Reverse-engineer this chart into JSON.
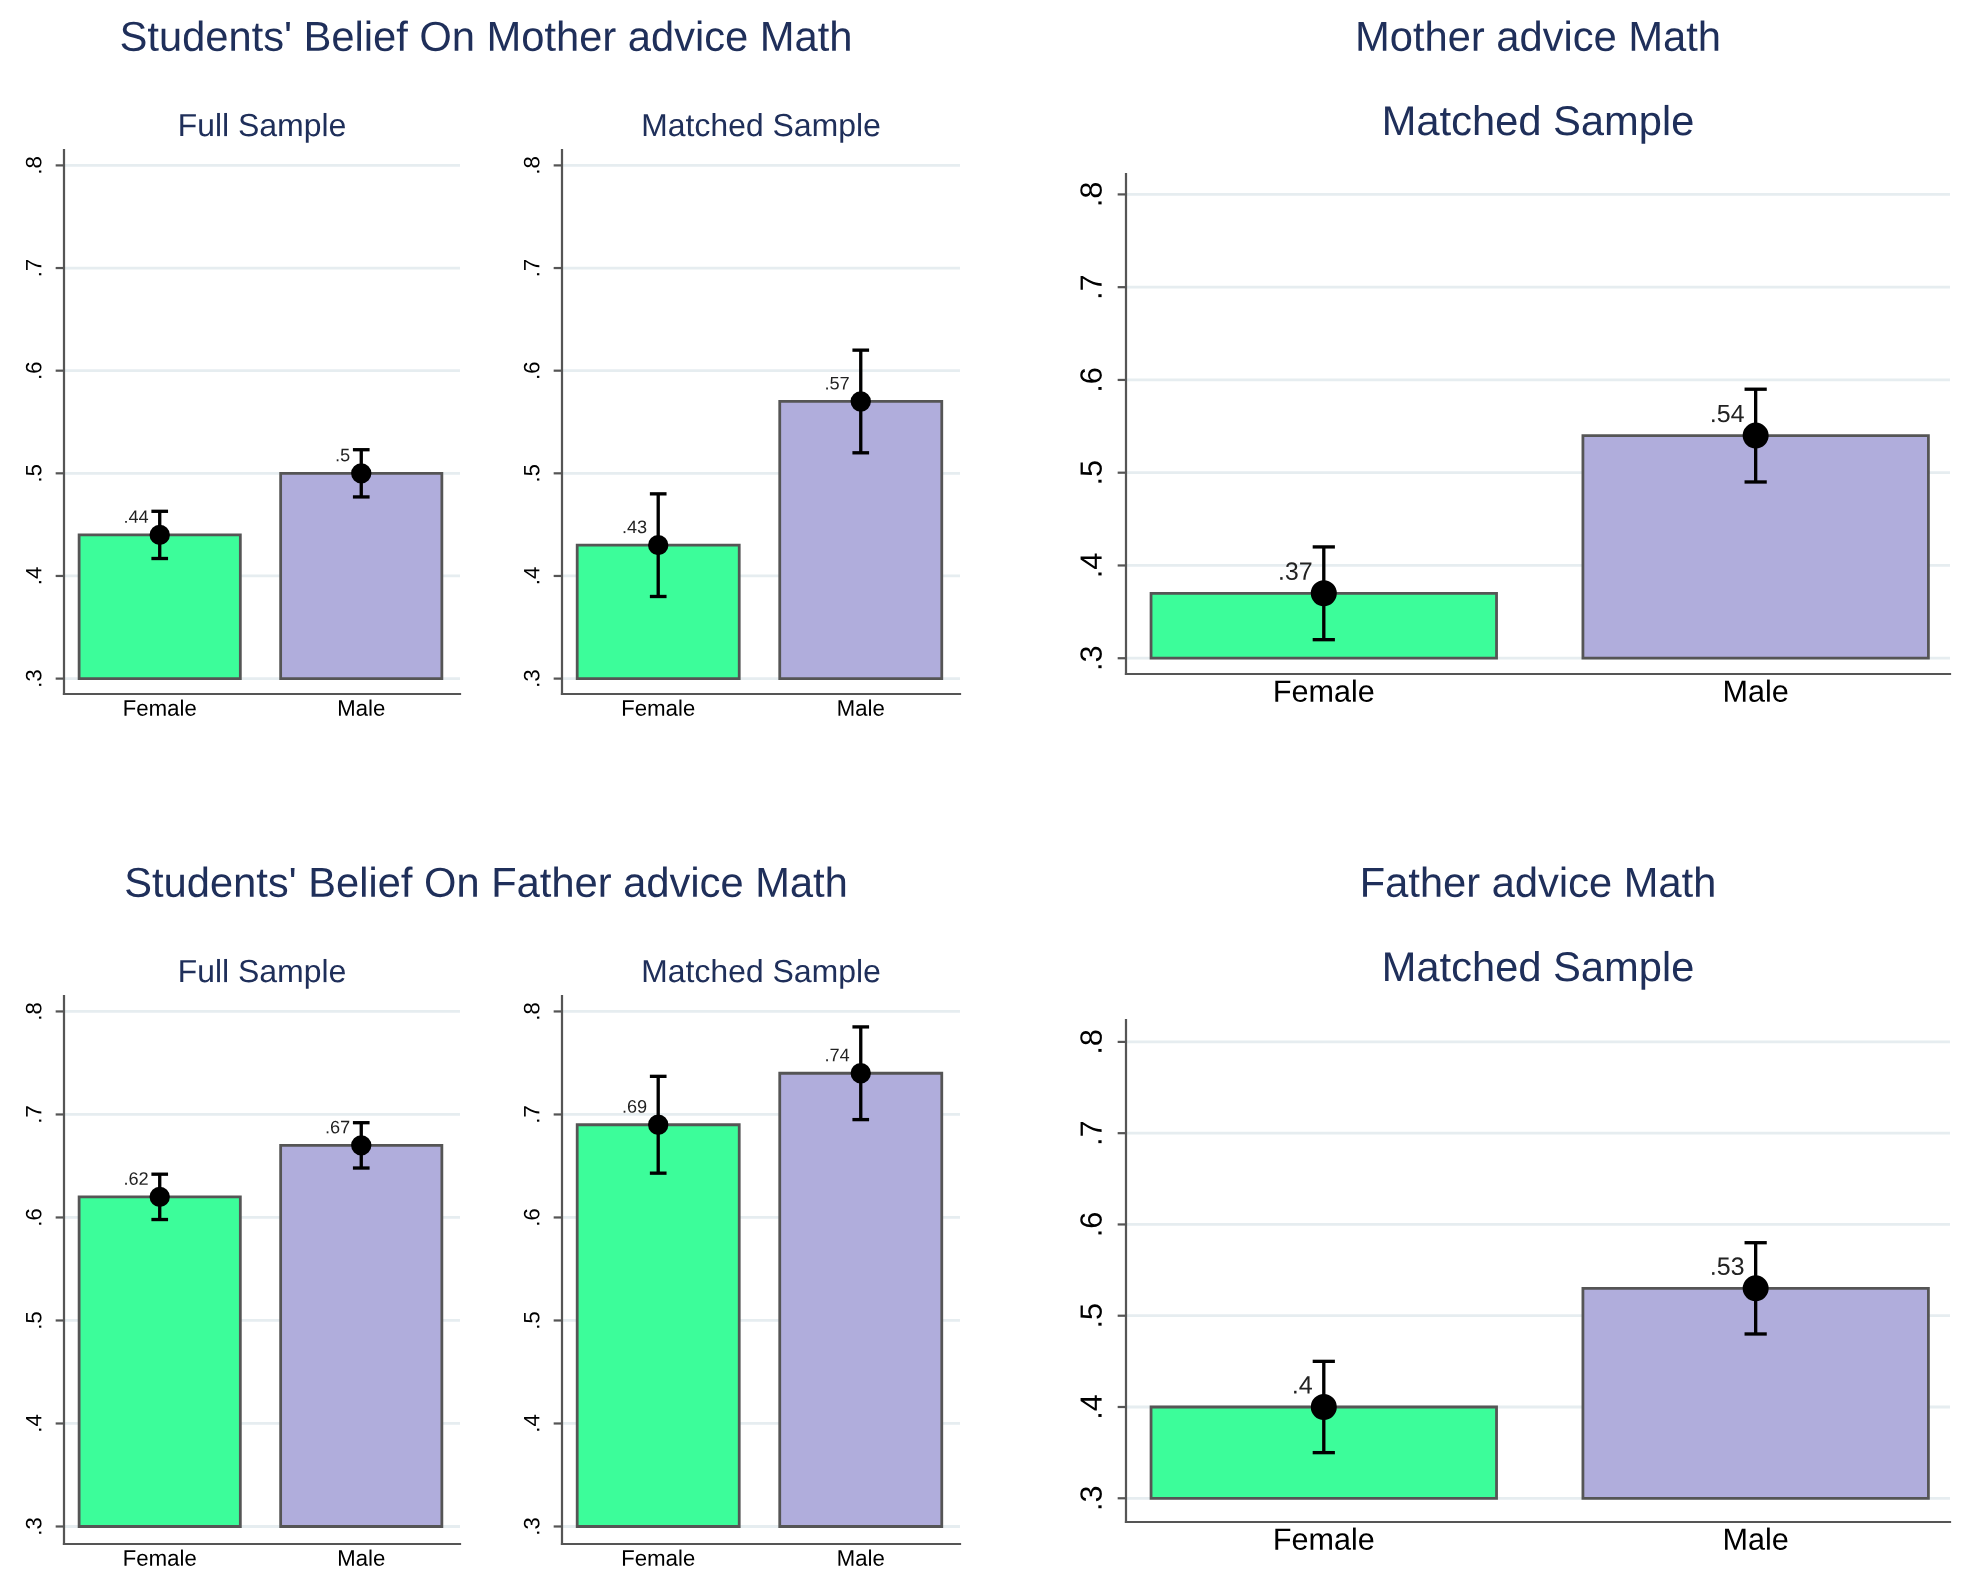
{
  "chart_data": [
    {
      "type": "bar",
      "title": "Full Sample",
      "annotations": [
        "Students' Belief On Mother advice Math"
      ],
      "categories": [
        "Female",
        "Male"
      ],
      "ylim": [
        0.285,
        0.815
      ],
      "yticks": [
        {
          "value": 0.3,
          "label": ".3"
        },
        {
          "value": 0.4,
          "label": ".4"
        },
        {
          "value": 0.5,
          "label": ".5"
        },
        {
          "value": 0.6,
          "label": ".6"
        },
        {
          "value": 0.7,
          "label": ".7"
        },
        {
          "value": 0.8,
          "label": ".8"
        }
      ],
      "grid": "y",
      "series": [
        {
          "base": [
            0.3,
            0.3
          ],
          "values": [
            0.14,
            0.2
          ],
          "colors": [
            "#3cfd9a",
            "#b0addc"
          ]
        },
        {
          "type": "scatter",
          "x": [
            "Female",
            "Male"
          ],
          "values": [
            0.44,
            0.5
          ],
          "errors": [
            [
              0.417,
              0.463
            ],
            [
              0.477,
              0.523
            ]
          ],
          "value_labels": [
            ".44",
            ".5"
          ],
          "color": "#000000",
          "marker": "circle"
        }
      ]
    },
    {
      "type": "bar",
      "title": "Matched Sample",
      "categories": [
        "Female",
        "Male"
      ],
      "ylim": [
        0.285,
        0.815
      ],
      "yticks": [
        {
          "value": 0.3,
          "label": ".3"
        },
        {
          "value": 0.4,
          "label": ".4"
        },
        {
          "value": 0.5,
          "label": ".5"
        },
        {
          "value": 0.6,
          "label": ".6"
        },
        {
          "value": 0.7,
          "label": ".7"
        },
        {
          "value": 0.8,
          "label": ".8"
        }
      ],
      "grid": "y",
      "series": [
        {
          "base": [
            0.3,
            0.3
          ],
          "values": [
            0.13,
            0.27
          ],
          "colors": [
            "#3cfd9a",
            "#b0addc"
          ]
        },
        {
          "type": "scatter",
          "x": [
            "Female",
            "Male"
          ],
          "values": [
            0.43,
            0.57
          ],
          "errors": [
            [
              0.38,
              0.48
            ],
            [
              0.52,
              0.62
            ]
          ],
          "value_labels": [
            ".43",
            ".57"
          ],
          "color": "#000000",
          "marker": "circle"
        }
      ]
    },
    {
      "type": "bar",
      "title": "Mother advice Math",
      "subtitle": "Matched Sample",
      "categories": [
        "Female",
        "Male"
      ],
      "ylim": [
        0.283,
        0.822
      ],
      "yticks": [
        {
          "value": 0.3,
          "label": ".3"
        },
        {
          "value": 0.4,
          "label": ".4"
        },
        {
          "value": 0.5,
          "label": ".5"
        },
        {
          "value": 0.6,
          "label": ".6"
        },
        {
          "value": 0.7,
          "label": ".7"
        },
        {
          "value": 0.8,
          "label": ".8"
        }
      ],
      "grid": "y",
      "series": [
        {
          "base": [
            0.3,
            0.3
          ],
          "values": [
            0.07,
            0.24
          ],
          "colors": [
            "#3cfd9a",
            "#b0addc"
          ]
        },
        {
          "type": "scatter",
          "x": [
            "Female",
            "Male"
          ],
          "values": [
            0.37,
            0.54
          ],
          "errors": [
            [
              0.32,
              0.42
            ],
            [
              0.49,
              0.59
            ]
          ],
          "value_labels": [
            ".37",
            ".54"
          ],
          "color": "#000000",
          "marker": "circle"
        }
      ]
    },
    {
      "type": "bar",
      "title": "Full Sample",
      "annotations": [
        "Students' Belief On Father advice Math"
      ],
      "categories": [
        "Female",
        "Male"
      ],
      "ylim": [
        0.283,
        0.815
      ],
      "yticks": [
        {
          "value": 0.3,
          "label": ".3"
        },
        {
          "value": 0.4,
          "label": ".4"
        },
        {
          "value": 0.5,
          "label": ".5"
        },
        {
          "value": 0.6,
          "label": ".6"
        },
        {
          "value": 0.7,
          "label": ".7"
        },
        {
          "value": 0.8,
          "label": ".8"
        }
      ],
      "grid": "y",
      "series": [
        {
          "base": [
            0.3,
            0.3
          ],
          "values": [
            0.32,
            0.37
          ],
          "colors": [
            "#3cfd9a",
            "#b0addc"
          ]
        },
        {
          "type": "scatter",
          "x": [
            "Female",
            "Male"
          ],
          "values": [
            0.62,
            0.67
          ],
          "errors": [
            [
              0.598,
              0.642
            ],
            [
              0.648,
              0.692
            ]
          ],
          "value_labels": [
            ".62",
            ".67"
          ],
          "color": "#000000",
          "marker": "circle"
        }
      ]
    },
    {
      "type": "bar",
      "title": "Matched Sample",
      "categories": [
        "Female",
        "Male"
      ],
      "ylim": [
        0.283,
        0.815
      ],
      "yticks": [
        {
          "value": 0.3,
          "label": ".3"
        },
        {
          "value": 0.4,
          "label": ".4"
        },
        {
          "value": 0.5,
          "label": ".5"
        },
        {
          "value": 0.6,
          "label": ".6"
        },
        {
          "value": 0.7,
          "label": ".7"
        },
        {
          "value": 0.8,
          "label": ".8"
        }
      ],
      "grid": "y",
      "series": [
        {
          "base": [
            0.3,
            0.3
          ],
          "values": [
            0.39,
            0.44
          ],
          "colors": [
            "#3cfd9a",
            "#b0addc"
          ]
        },
        {
          "type": "scatter",
          "x": [
            "Female",
            "Male"
          ],
          "values": [
            0.69,
            0.74
          ],
          "errors": [
            [
              0.643,
              0.737
            ],
            [
              0.695,
              0.785
            ]
          ],
          "value_labels": [
            ".69",
            ".74"
          ],
          "color": "#000000",
          "marker": "circle"
        }
      ]
    },
    {
      "type": "bar",
      "title": "Father advice Math",
      "subtitle": "Matched Sample",
      "categories": [
        "Female",
        "Male"
      ],
      "ylim": [
        0.274,
        0.824
      ],
      "yticks": [
        {
          "value": 0.3,
          "label": ".3"
        },
        {
          "value": 0.4,
          "label": ".4"
        },
        {
          "value": 0.5,
          "label": ".5"
        },
        {
          "value": 0.6,
          "label": ".6"
        },
        {
          "value": 0.7,
          "label": ".7"
        },
        {
          "value": 0.8,
          "label": ".8"
        }
      ],
      "grid": "y",
      "series": [
        {
          "base": [
            0.3,
            0.3
          ],
          "values": [
            0.1,
            0.23
          ],
          "colors": [
            "#3cfd9a",
            "#b0addc"
          ]
        },
        {
          "type": "scatter",
          "x": [
            "Female",
            "Male"
          ],
          "values": [
            0.4,
            0.53
          ],
          "errors": [
            [
              0.35,
              0.45
            ],
            [
              0.48,
              0.58
            ]
          ],
          "value_labels": [
            ".4",
            ".53"
          ],
          "color": "#000000",
          "marker": "circle"
        }
      ]
    }
  ]
}
